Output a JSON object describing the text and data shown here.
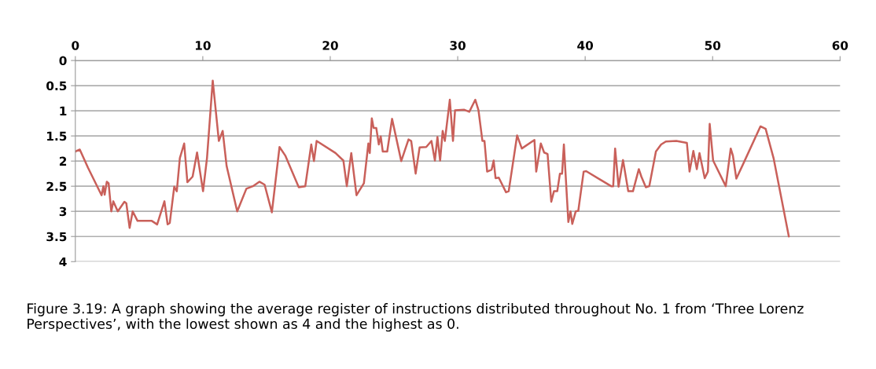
{
  "chart_data": {
    "type": "line",
    "x": [
      0,
      0.35,
      0.99,
      2.06,
      2.2,
      2.3,
      2.47,
      2.61,
      2.82,
      2.98,
      3.33,
      3.85,
      4.0,
      4.26,
      4.5,
      4.88,
      6.0,
      6.42,
      6.99,
      7.24,
      7.41,
      7.76,
      7.96,
      8.2,
      8.54,
      8.79,
      9.2,
      9.55,
      10.02,
      10.33,
      10.78,
      11.26,
      11.56,
      11.87,
      12.7,
      13.42,
      13.93,
      14.44,
      14.85,
      15.42,
      16.02,
      16.47,
      17.53,
      18.04,
      18.51,
      18.72,
      18.93,
      20.41,
      21.03,
      21.3,
      21.65,
      22.06,
      22.64,
      22.99,
      23.1,
      23.26,
      23.4,
      23.61,
      23.81,
      23.96,
      24.12,
      24.47,
      24.85,
      25.57,
      26.14,
      26.35,
      26.7,
      27.01,
      27.53,
      27.94,
      28.21,
      28.41,
      28.62,
      28.82,
      28.99,
      29.38,
      29.63,
      29.79,
      30.52,
      30.91,
      31.38,
      31.63,
      31.94,
      32.1,
      32.31,
      32.66,
      32.82,
      32.97,
      33.22,
      33.79,
      34.0,
      34.66,
      35.03,
      36.02,
      36.16,
      36.52,
      36.78,
      37.05,
      37.34,
      37.55,
      37.81,
      38.02,
      38.19,
      38.33,
      38.68,
      38.85,
      38.99,
      39.26,
      39.46,
      39.88,
      40.08,
      42.04,
      42.2,
      42.35,
      42.62,
      42.97,
      43.38,
      43.75,
      44.21,
      44.41,
      44.76,
      45.03,
      45.55,
      45.96,
      46.33,
      47.15,
      47.98,
      48.19,
      48.49,
      48.76,
      48.97,
      49.38,
      49.63,
      49.77,
      50.04,
      51.03,
      51.42,
      51.59,
      51.86,
      52.41,
      53.75,
      54.16,
      54.78,
      55.98
    ],
    "series": [
      {
        "color": "#c9605a",
        "values": [
          1.81,
          1.77,
          2.13,
          2.68,
          2.5,
          2.67,
          2.41,
          2.44,
          3.0,
          2.8,
          3.0,
          2.81,
          2.84,
          3.33,
          3.0,
          3.19,
          3.19,
          3.26,
          2.8,
          3.26,
          3.23,
          2.51,
          2.6,
          1.94,
          1.65,
          2.42,
          2.31,
          1.83,
          2.6,
          1.94,
          0.4,
          1.6,
          1.4,
          2.1,
          3.0,
          2.55,
          2.5,
          2.41,
          2.47,
          3.02,
          1.72,
          1.89,
          2.52,
          2.5,
          1.67,
          2.0,
          1.6,
          1.84,
          1.99,
          2.5,
          1.84,
          2.68,
          2.44,
          1.65,
          1.84,
          1.15,
          1.34,
          1.34,
          1.67,
          1.51,
          1.81,
          1.81,
          1.16,
          2.0,
          1.57,
          1.6,
          2.25,
          1.73,
          1.72,
          1.6,
          1.99,
          1.52,
          1.99,
          1.4,
          1.6,
          0.78,
          1.6,
          0.99,
          0.98,
          1.02,
          0.78,
          0.99,
          1.6,
          1.6,
          2.21,
          2.17,
          1.99,
          2.34,
          2.33,
          2.62,
          2.6,
          1.49,
          1.75,
          1.58,
          2.21,
          1.65,
          1.83,
          1.86,
          2.81,
          2.6,
          2.6,
          2.25,
          2.25,
          1.67,
          3.21,
          3.0,
          3.25,
          3.0,
          2.99,
          2.21,
          2.2,
          2.5,
          2.5,
          1.75,
          2.51,
          1.98,
          2.6,
          2.6,
          2.16,
          2.31,
          2.52,
          2.5,
          1.81,
          1.67,
          1.61,
          1.6,
          1.64,
          2.21,
          1.8,
          2.16,
          1.84,
          2.34,
          2.21,
          1.26,
          1.99,
          2.5,
          1.75,
          1.89,
          2.35,
          2.05,
          1.31,
          1.36,
          1.94,
          3.5
        ]
      }
    ],
    "xlim": [
      0,
      60
    ],
    "xticks": [
      0,
      10,
      20,
      30,
      40,
      50,
      60
    ],
    "ylim": [
      4,
      0
    ],
    "yticks": [
      0,
      0.5,
      1,
      1.5,
      2,
      2.5,
      3,
      3.5,
      4
    ],
    "grid": "y",
    "annotations": [
      "Figure 3.19: A graph showing the average register of instructions distributed throughout No. 1 from ‘Three Lorenz Perspectives’, with the lowest shown as 4 and the highest as 0."
    ]
  }
}
